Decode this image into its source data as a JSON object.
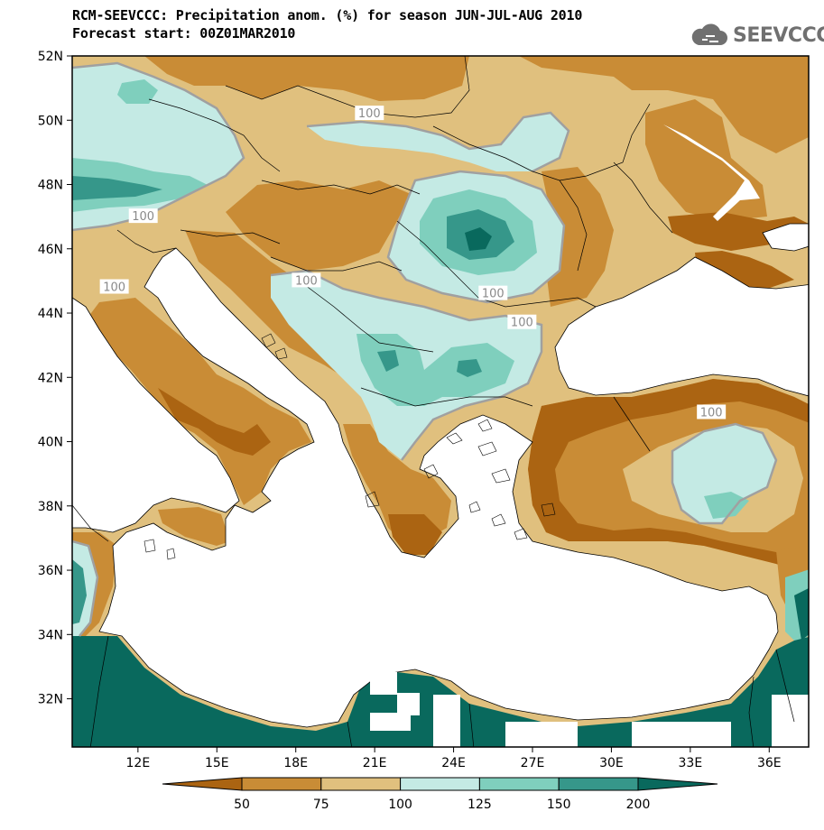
{
  "header": {
    "title_line1": "RCM-SEEVCCC: Precipitation anom. (%) for season JUN-JUL-AUG 2010",
    "title_line2": "Forecast start: 00Z01MAR2010"
  },
  "logo": {
    "text": "SEEVCCC",
    "icon": "cloud-icon"
  },
  "map": {
    "lon_range": [
      9.5,
      37.5
    ],
    "lat_range": [
      30.5,
      52
    ],
    "lat_ticks": [
      {
        "lat": 52,
        "label": "52N"
      },
      {
        "lat": 50,
        "label": "50N"
      },
      {
        "lat": 48,
        "label": "48N"
      },
      {
        "lat": 46,
        "label": "46N"
      },
      {
        "lat": 44,
        "label": "44N"
      },
      {
        "lat": 42,
        "label": "42N"
      },
      {
        "lat": 40,
        "label": "40N"
      },
      {
        "lat": 38,
        "label": "38N"
      },
      {
        "lat": 36,
        "label": "36N"
      },
      {
        "lat": 34,
        "label": "34N"
      },
      {
        "lat": 32,
        "label": "32N"
      }
    ],
    "lon_ticks": [
      {
        "lon": 12,
        "label": "12E"
      },
      {
        "lon": 15,
        "label": "15E"
      },
      {
        "lon": 18,
        "label": "18E"
      },
      {
        "lon": 21,
        "label": "21E"
      },
      {
        "lon": 24,
        "label": "24E"
      },
      {
        "lon": 27,
        "label": "27E"
      },
      {
        "lon": 30,
        "label": "30E"
      },
      {
        "lon": 33,
        "label": "33E"
      },
      {
        "lon": 36,
        "label": "36E"
      }
    ],
    "contour_labels": [
      {
        "text": "100",
        "lon": 20.8,
        "lat": 50.2
      },
      {
        "text": "100",
        "lon": 12.2,
        "lat": 47.0
      },
      {
        "text": "100",
        "lon": 11.1,
        "lat": 44.8
      },
      {
        "text": "100",
        "lon": 18.4,
        "lat": 45.0
      },
      {
        "text": "100",
        "lon": 25.5,
        "lat": 44.6
      },
      {
        "text": "100",
        "lon": 26.6,
        "lat": 43.7
      },
      {
        "text": "100",
        "lon": 33.8,
        "lat": 40.9
      }
    ]
  },
  "colorbar": {
    "labels": [
      "50",
      "75",
      "100",
      "125",
      "150",
      "200"
    ],
    "colors": [
      "#ab6412",
      "#c98c36",
      "#e0c07e",
      "#c4eae4",
      "#7fcfbd",
      "#36978a",
      "#09695d"
    ],
    "over_color": "#09695d",
    "under_color": "#ab6412"
  },
  "colors": {
    "sea": "#ffffff",
    "bin_50": "#ab6412",
    "bin_75": "#c98c36",
    "bin_100": "#e0c07e",
    "bin_125": "#c4eae4",
    "bin_150": "#7fcfbd",
    "bin_175": "#36978a",
    "bin_200": "#09695d",
    "contour": "#a0a0a0"
  }
}
